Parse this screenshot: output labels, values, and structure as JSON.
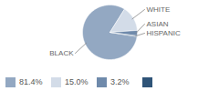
{
  "chart_data": {
    "type": "pie",
    "categories": [
      "BLACK",
      "WHITE",
      "ASIAN",
      "HISPANIC"
    ],
    "values": [
      81.4,
      15.0,
      3.2,
      0.4
    ],
    "value_labels": [
      "81.4%",
      "15.0%",
      "3.2%",
      null
    ],
    "colors": [
      "#93a8c2",
      "#d3dce8",
      "#6f8aab",
      "#2f5478"
    ],
    "legend": "bottom"
  }
}
